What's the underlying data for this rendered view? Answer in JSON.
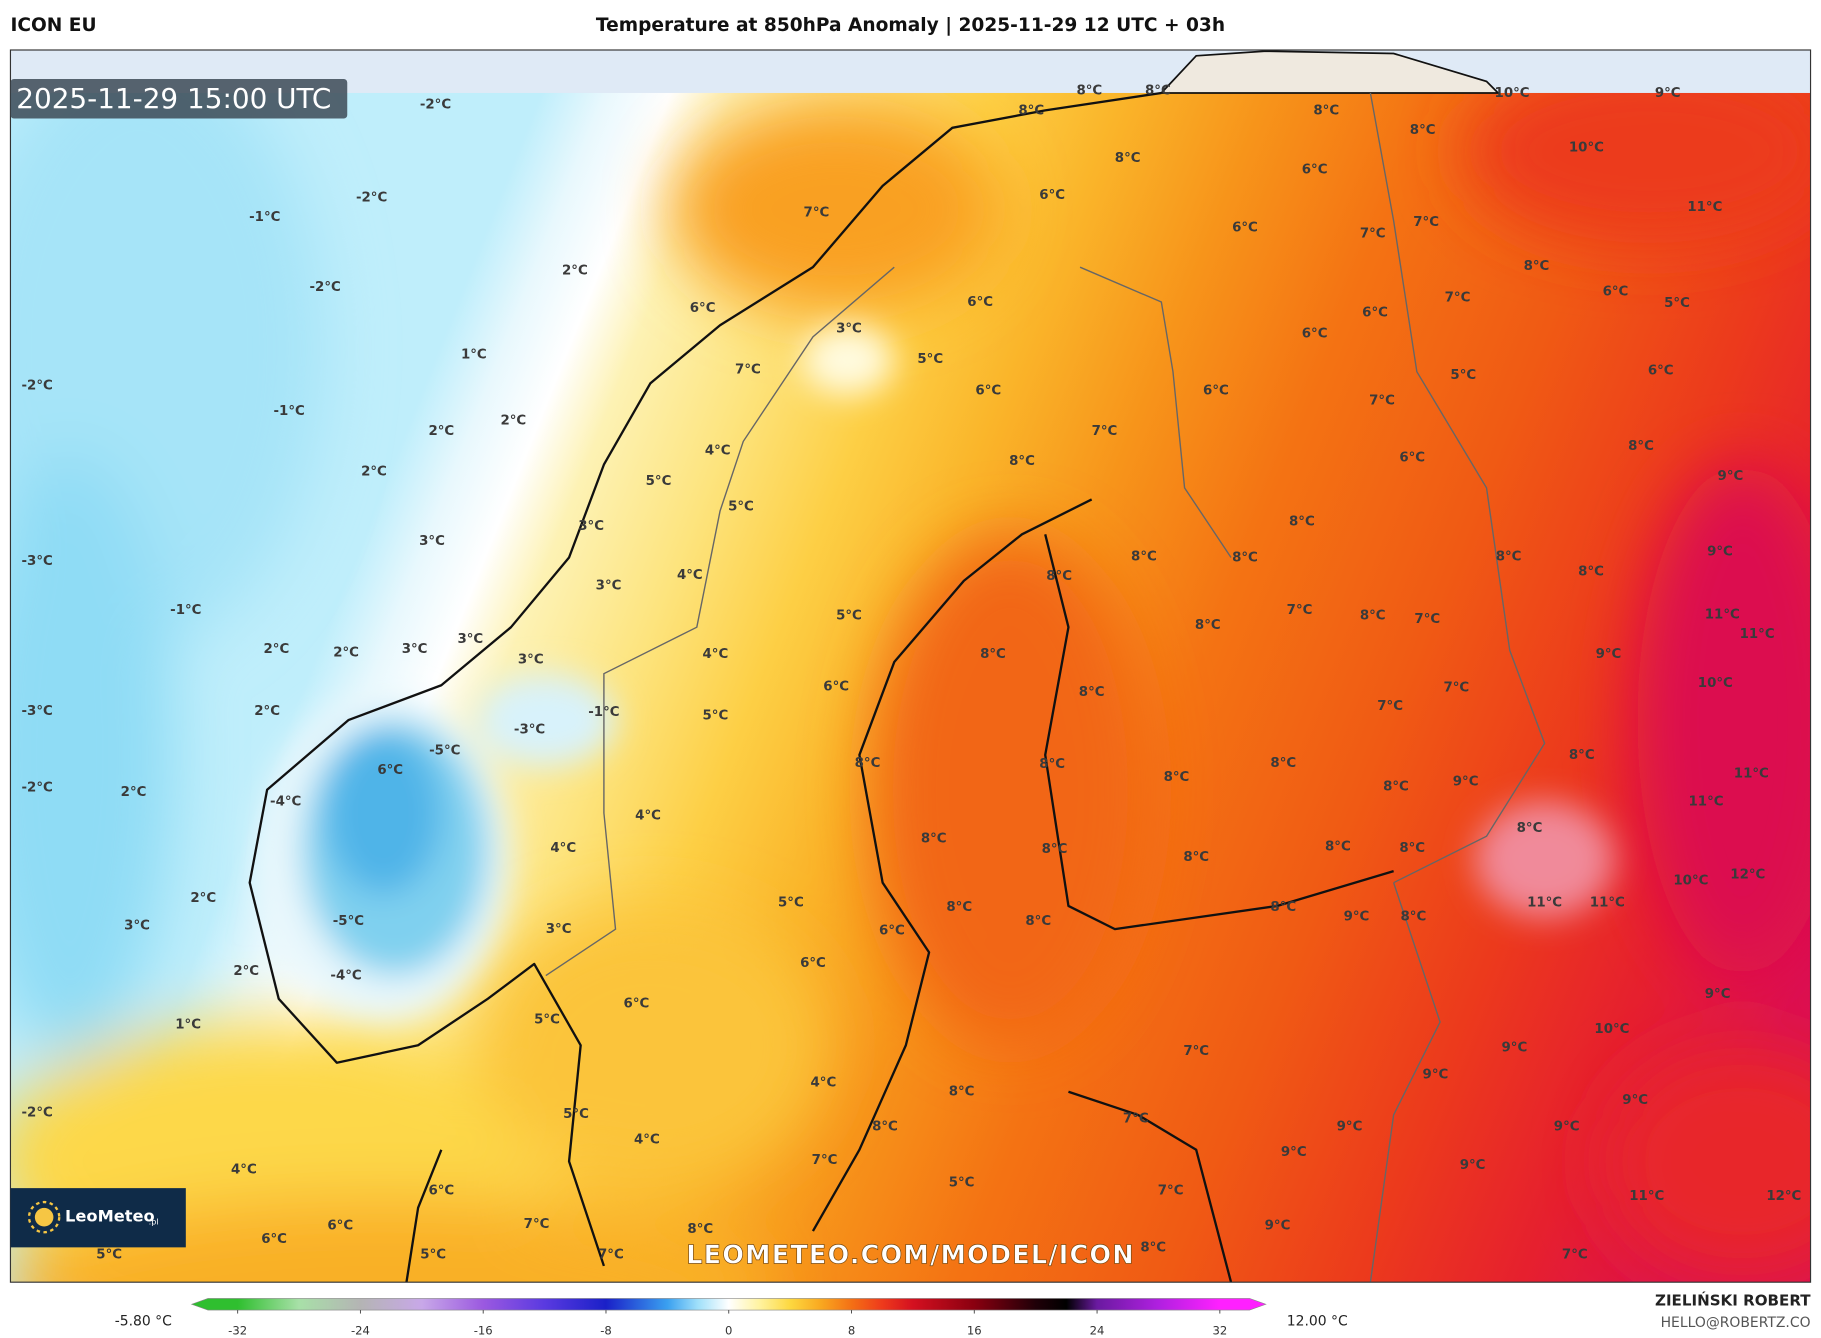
{
  "header": {
    "model": "ICON EU",
    "title": "Temperature at 850hPa Anomaly | 2025-11-29 12 UTC + 03h"
  },
  "map": {
    "timestamp": "2025-11-29 15:00 UTC",
    "labels": [
      "-2°C",
      "-2°C",
      "-1°C",
      "-2°C",
      "2°C",
      "1°C",
      "-2°C",
      "-1°C",
      "2°C",
      "2°C",
      "2°C",
      "3°C",
      "-3°C",
      "-1°C",
      "2°C",
      "2°C",
      "3°C",
      "3°C",
      "-3°C",
      "2°C",
      "-2°C",
      "2°C",
      "2°C",
      "3°C",
      "2°C",
      "1°C",
      "-2°C",
      "4°C",
      "6°C",
      "6°C",
      "6°C",
      "5°C",
      "5°C",
      "8°C",
      "8°C",
      "8°C",
      "8°C",
      "10°C",
      "9°C",
      "8°C",
      "8°C",
      "10°C",
      "6°C",
      "6°C",
      "7°C",
      "11°C",
      "6°C",
      "7°C",
      "7°C",
      "8°C",
      "6°C",
      "6°C",
      "6°C",
      "7°C",
      "6°C",
      "5°C",
      "3°C",
      "6°C",
      "5°C",
      "7°C",
      "6°C",
      "6°C",
      "5°C",
      "6°C",
      "7°C",
      "7°C",
      "8°C",
      "4°C",
      "8°C",
      "6°C",
      "5°C",
      "9°C",
      "5°C",
      "3°C",
      "8°C",
      "9°C",
      "8°C",
      "8°C",
      "8°C",
      "8°C",
      "8°C",
      "4°C",
      "3°C",
      "7°C",
      "8°C",
      "7°C",
      "11°C",
      "11°C",
      "5°C",
      "8°C",
      "8°C",
      "4°C",
      "3°C",
      "9°C",
      "6°C",
      "10°C",
      "8°C",
      "7°C",
      "7°C",
      "5°C",
      "-1°C",
      "-3°C",
      "-5°C",
      "6°C",
      "8°C",
      "8°C",
      "8°C",
      "8°C",
      "11°C",
      "-4°C",
      "8°C",
      "9°C",
      "8°C",
      "11°C",
      "4°C",
      "8°C",
      "8°C",
      "8°C",
      "8°C",
      "8°C",
      "8°C",
      "4°C",
      "12°C",
      "10°C",
      "5°C",
      "8°C",
      "8°C",
      "8°C",
      "11°C",
      "11°C",
      "-5°C",
      "3°C",
      "6°C",
      "9°C",
      "8°C",
      "6°C",
      "-4°C",
      "6°C",
      "9°C",
      "5°C",
      "10°C",
      "9°C",
      "7°C",
      "9°C",
      "4°C",
      "8°C",
      "9°C",
      "7°C",
      "5°C",
      "9°C",
      "8°C",
      "9°C",
      "9°C",
      "4°C",
      "7°C",
      "9°C",
      "5°C",
      "7°C",
      "11°C",
      "12°C",
      "7°C",
      "8°C",
      "9°C",
      "8°C",
      "7°C",
      "7°C"
    ],
    "watermark": "LEOMETEO.COM/MODEL/ICON",
    "logo": {
      "name": "LeoMeteo",
      "suffix": ".pl"
    }
  },
  "colorbar": {
    "min_label": "-5.80 °C",
    "max_label": "12.00 °C",
    "range": [
      -35,
      35
    ],
    "ticks": [
      -32,
      -24,
      -16,
      -8,
      0,
      8,
      16,
      24,
      32
    ]
  },
  "credits": {
    "author": "ZIELIŃSKI ROBERT",
    "email": "HELLO@ROBERTZ.CO"
  }
}
